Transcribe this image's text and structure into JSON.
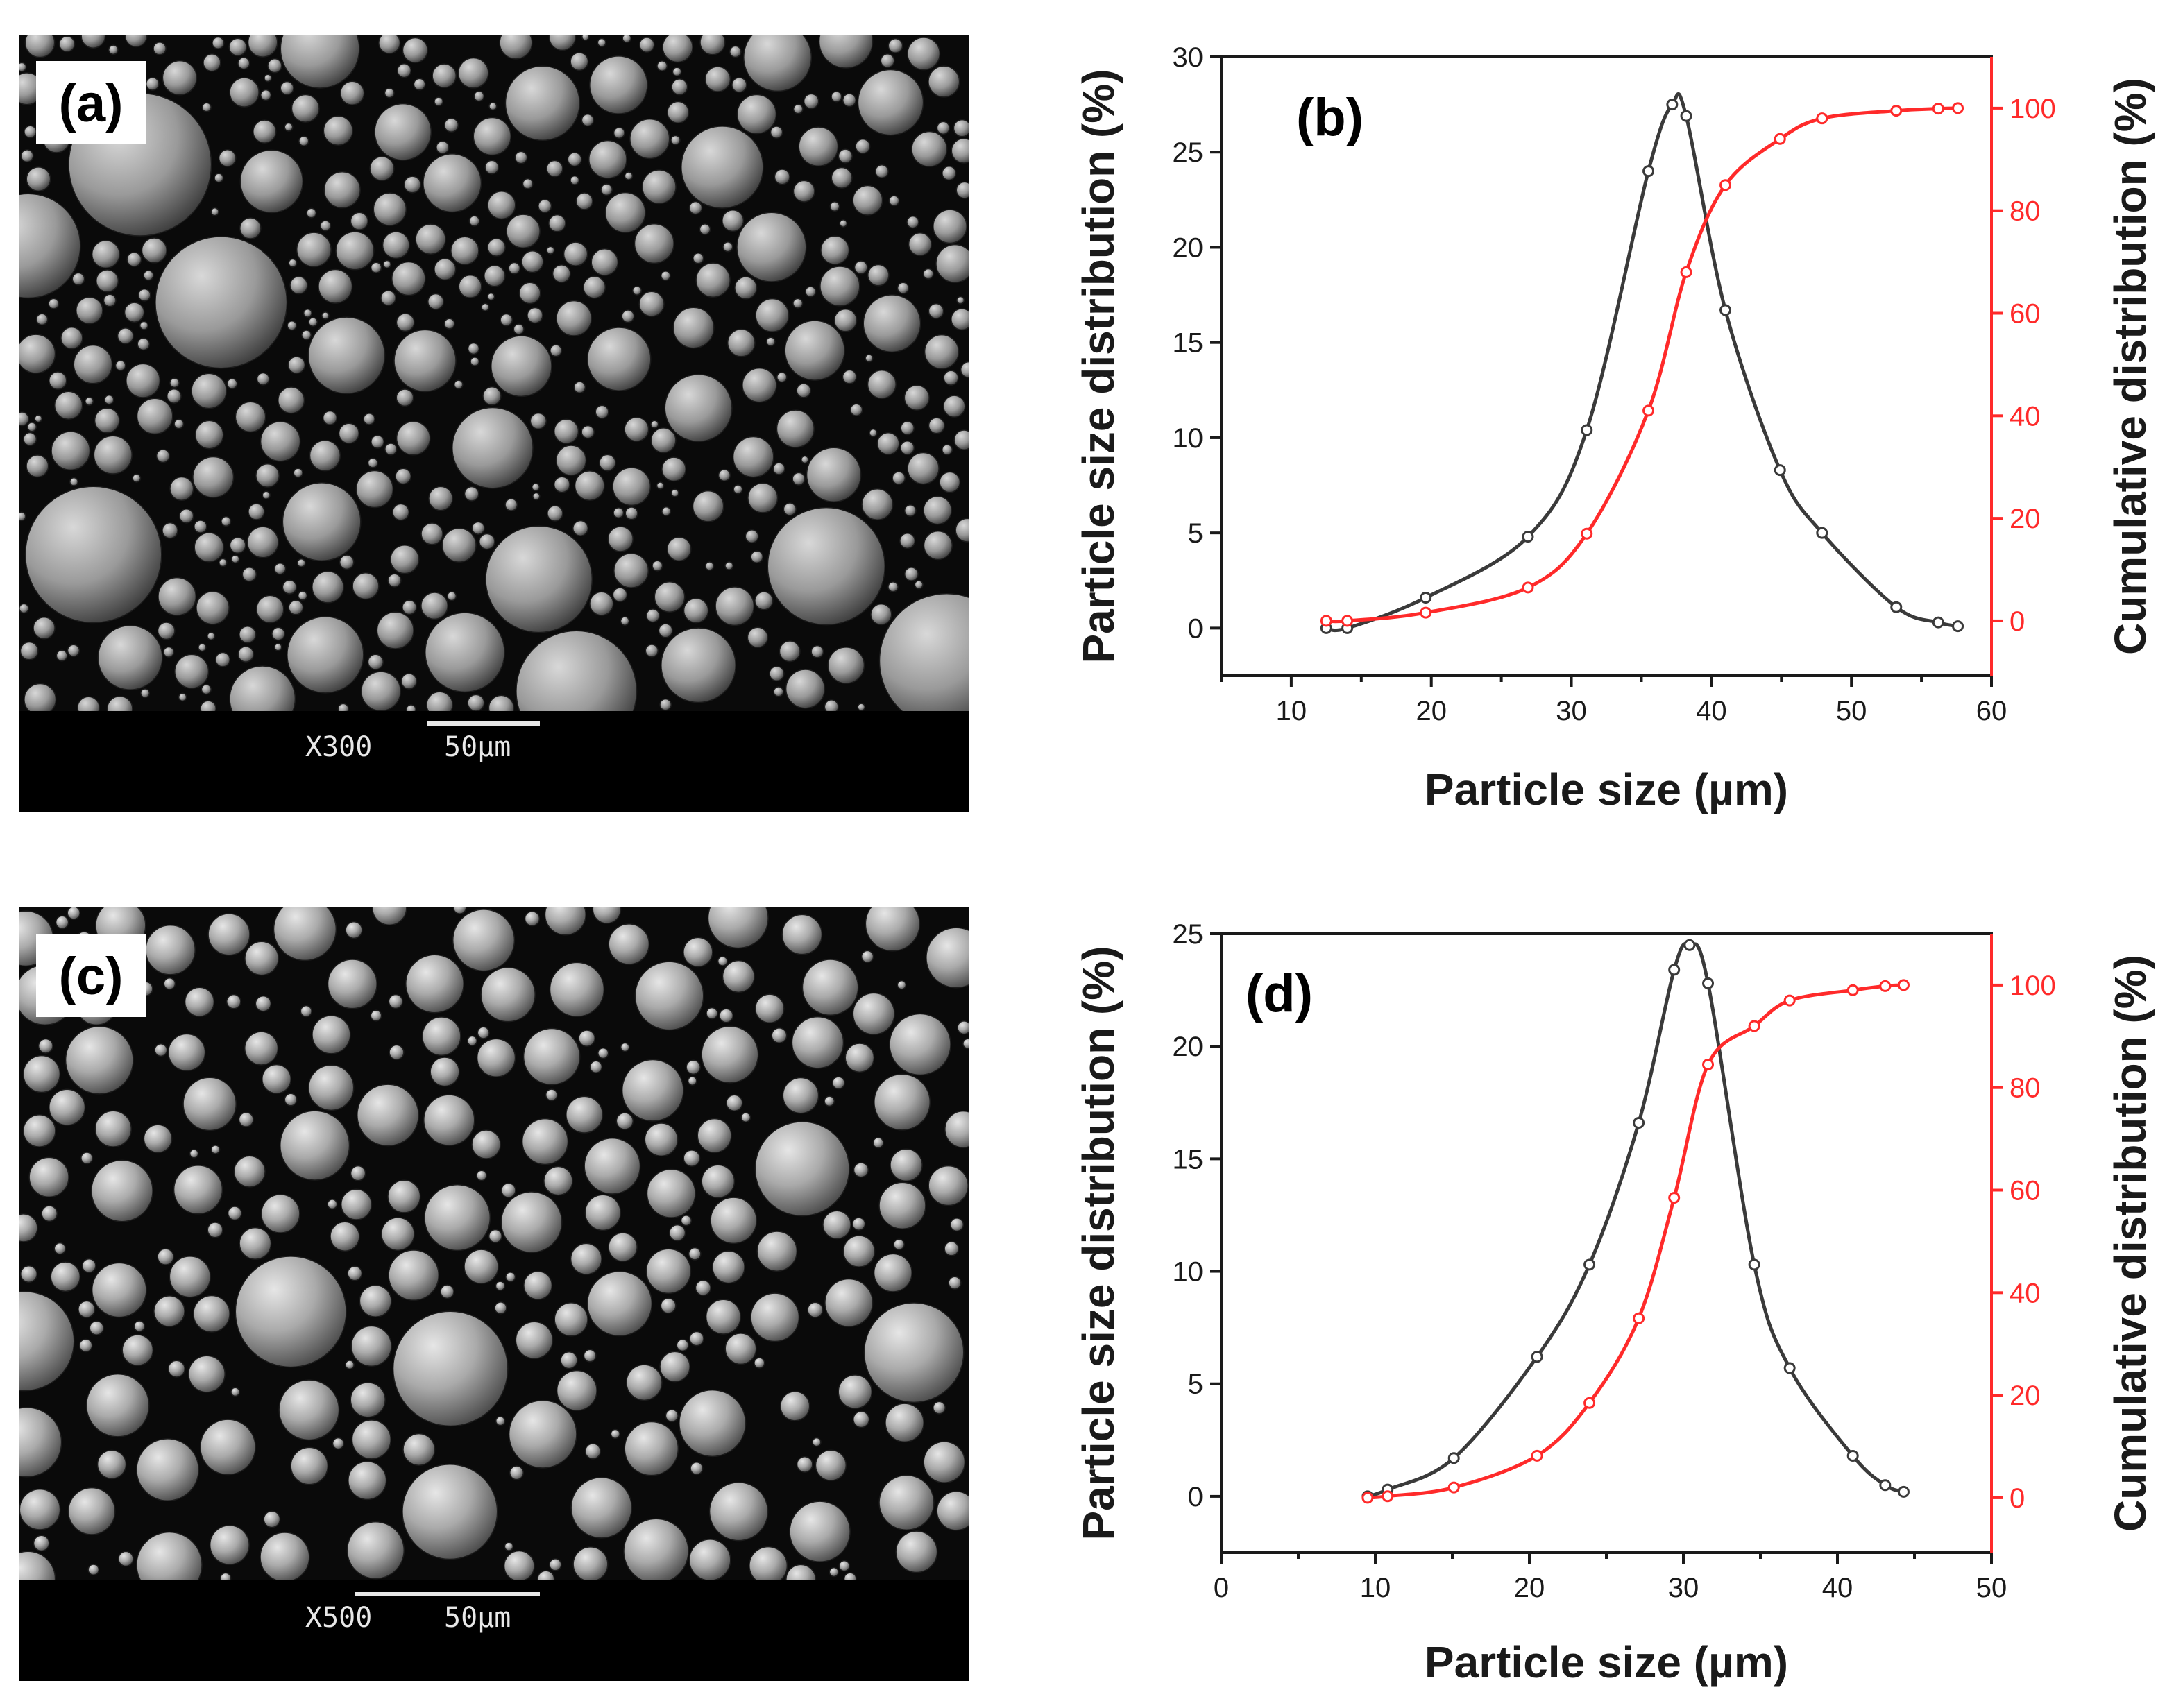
{
  "figure": {
    "panel_a": {
      "label": "(a)",
      "magnification": "X300",
      "scale": "50µm"
    },
    "panel_c": {
      "label": "(c)",
      "magnification": "X500",
      "scale": "50µm"
    }
  },
  "colors": {
    "distribution": "#3a3a3a",
    "cumulative": "#ff2a2a",
    "axis": "#1a1a1a"
  },
  "chart_data": [
    {
      "type": "line",
      "panel_label": "(b)",
      "xlabel": "Particle size (µm)",
      "ylabel": "Particle size distribution (%)",
      "y2label": "Cumulative distribution (%)",
      "xlim": [
        5,
        60
      ],
      "ylim": [
        -2.5,
        30
      ],
      "y2lim": [
        -10.7,
        110
      ],
      "xticks": [
        10,
        20,
        30,
        40,
        50,
        60
      ],
      "yticks": [
        0,
        5,
        10,
        15,
        20,
        25,
        30
      ],
      "y2ticks": [
        0,
        20,
        40,
        60,
        80,
        100
      ],
      "series": [
        {
          "name": "Particle size distribution",
          "axis": "left",
          "x": [
            12.5,
            14.0,
            19.6,
            26.9,
            31.1,
            35.5,
            37.2,
            38.2,
            41.0,
            44.9,
            47.9,
            53.2,
            56.2,
            57.6
          ],
          "y": [
            0.0,
            0.0,
            1.6,
            4.8,
            10.4,
            24.0,
            27.5,
            26.9,
            16.7,
            8.3,
            5.0,
            1.1,
            0.3,
            0.1
          ]
        },
        {
          "name": "Cumulative distribution",
          "axis": "right",
          "x": [
            12.5,
            14.0,
            19.6,
            26.9,
            31.1,
            35.5,
            38.2,
            41.0,
            44.9,
            47.9,
            53.2,
            56.2,
            57.6
          ],
          "y": [
            0.0,
            0.0,
            1.6,
            6.5,
            17.0,
            41.0,
            68.0,
            85.0,
            94.0,
            98.0,
            99.5,
            99.9,
            100.0
          ]
        }
      ]
    },
    {
      "type": "line",
      "panel_label": "(d)",
      "xlabel": "Particle size (µm)",
      "ylabel": "Particle size distribution (%)",
      "y2label": "Cumulative distribution (%)",
      "xlim": [
        0,
        50
      ],
      "ylim": [
        -2.5,
        25
      ],
      "y2lim": [
        -10.7,
        110
      ],
      "xticks": [
        0,
        10,
        20,
        30,
        40,
        50
      ],
      "yticks": [
        0,
        5,
        10,
        15,
        20,
        25
      ],
      "y2ticks": [
        0,
        20,
        40,
        60,
        80,
        100
      ],
      "series": [
        {
          "name": "Particle size distribution",
          "axis": "left",
          "x": [
            9.5,
            10.8,
            15.1,
            20.5,
            23.9,
            27.1,
            29.4,
            30.4,
            31.6,
            34.6,
            36.9,
            41.0,
            43.1,
            44.3
          ],
          "y": [
            0.0,
            0.3,
            1.7,
            6.2,
            10.3,
            16.6,
            23.4,
            24.5,
            22.8,
            10.3,
            5.7,
            1.8,
            0.5,
            0.2
          ]
        },
        {
          "name": "Cumulative distribution",
          "axis": "right",
          "x": [
            9.5,
            10.8,
            15.1,
            20.5,
            23.9,
            27.1,
            29.4,
            31.6,
            34.6,
            36.9,
            41.0,
            43.1,
            44.3
          ],
          "y": [
            0.0,
            0.3,
            2.0,
            8.2,
            18.5,
            35.0,
            58.5,
            84.5,
            92.0,
            97.0,
            99.0,
            99.8,
            100.0
          ]
        }
      ]
    }
  ]
}
